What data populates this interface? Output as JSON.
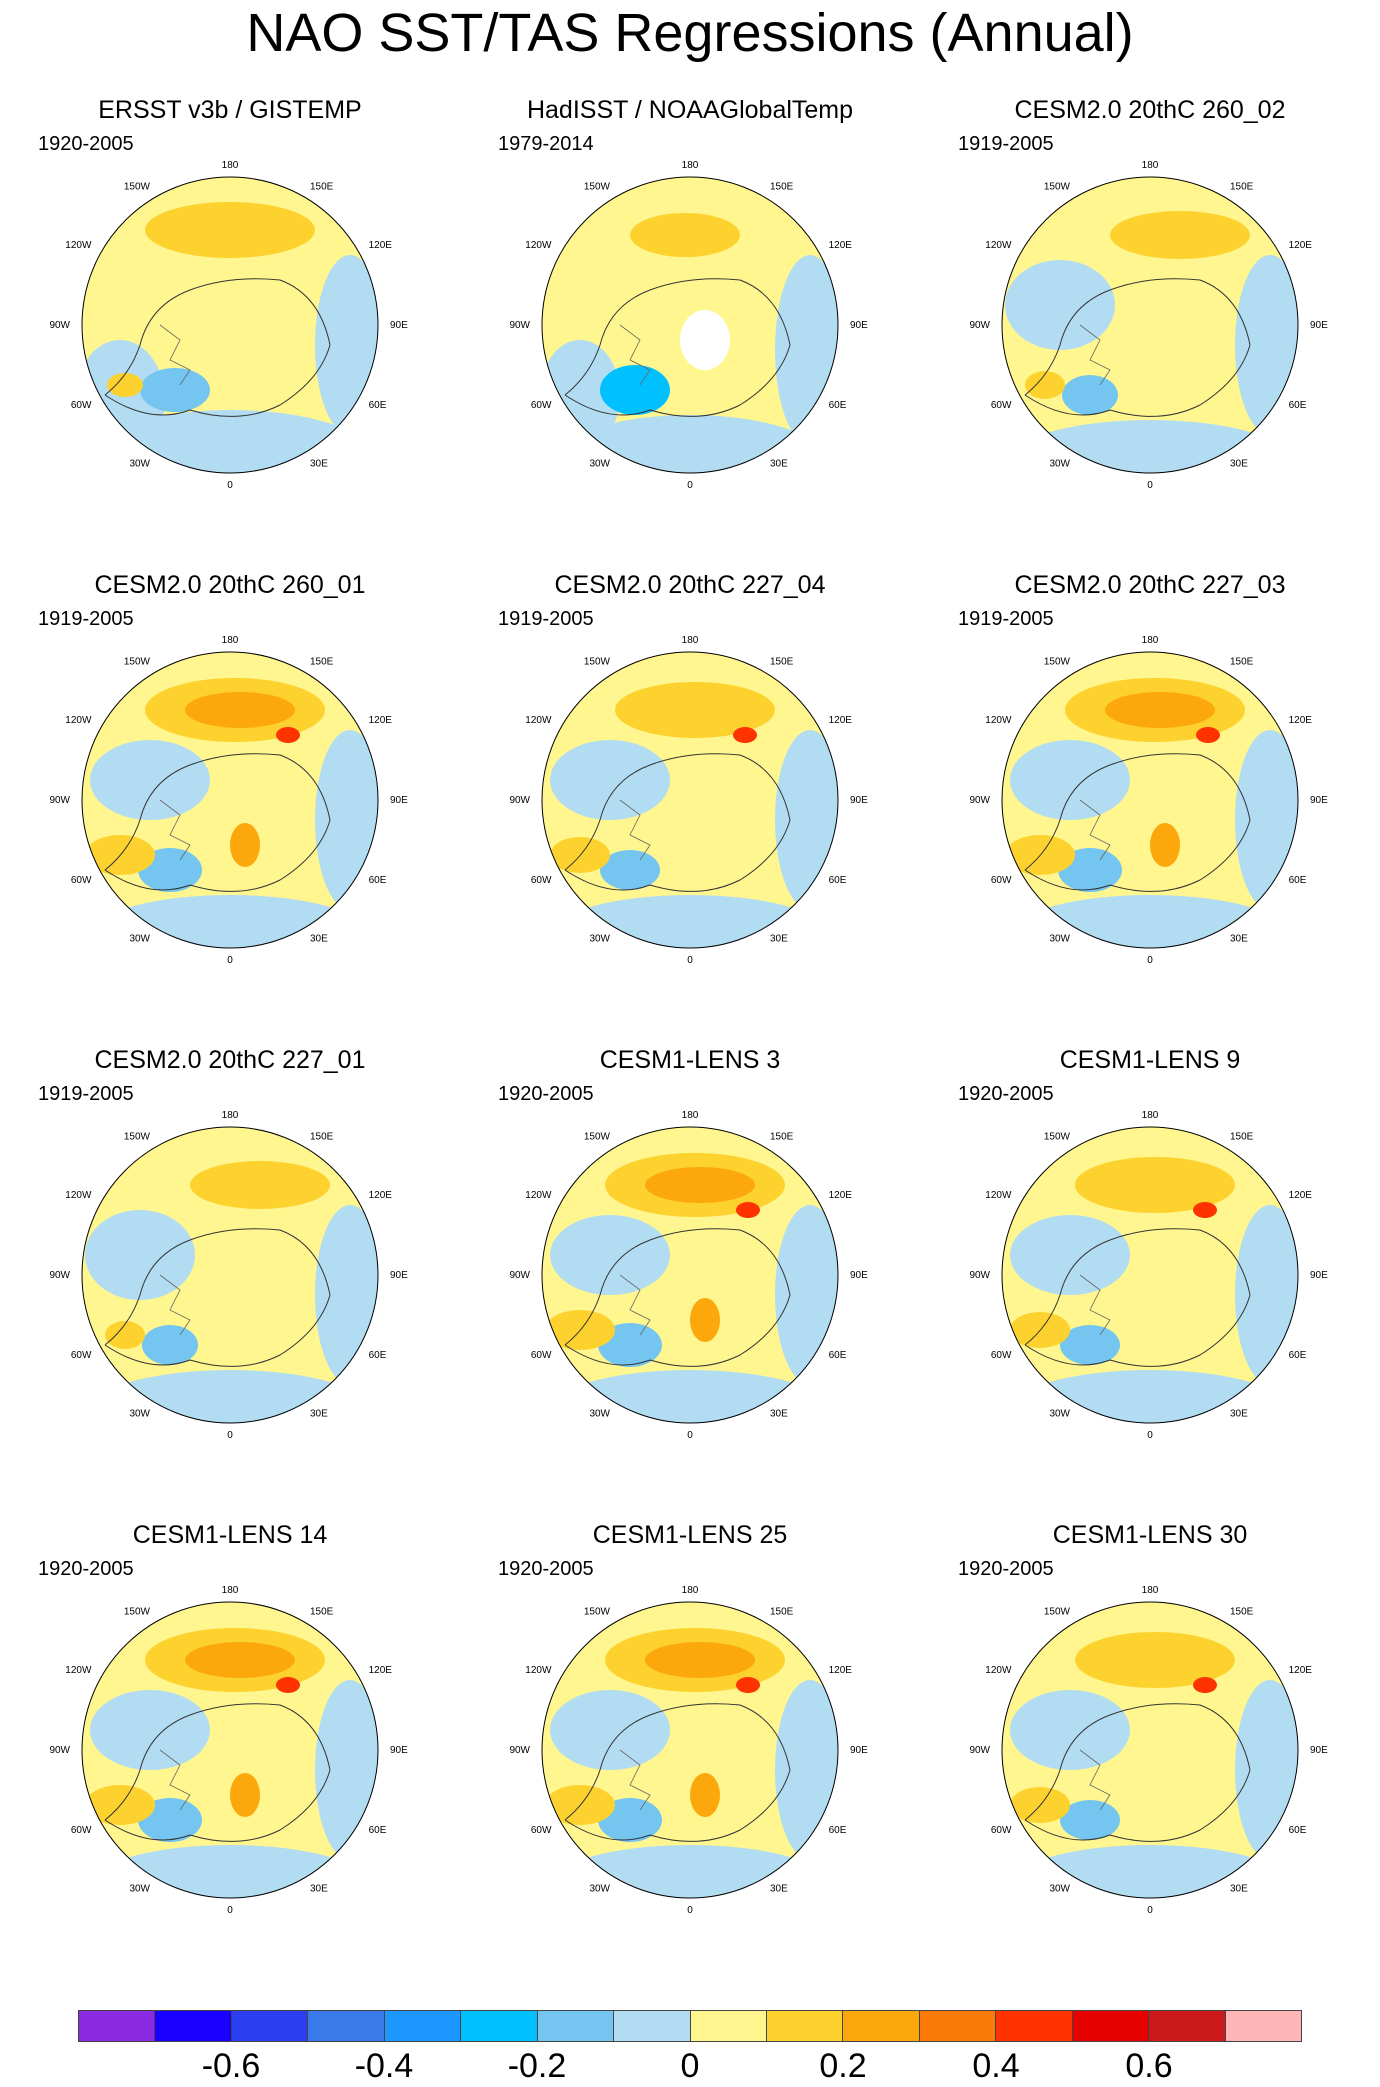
{
  "title": "NAO SST/TAS Regressions (Annual)",
  "panels": [
    {
      "title": "ERSST v3b / GISTEMP",
      "period": "1920-2005",
      "variant": "obs1"
    },
    {
      "title": "HadISST / NOAAGlobalTemp",
      "period": "1979-2014",
      "variant": "obs2"
    },
    {
      "title": "CESM2.0 20thC 260_02",
      "period": "1919-2005",
      "variant": "weak"
    },
    {
      "title": "CESM2.0 20thC 260_01",
      "period": "1919-2005",
      "variant": "strong"
    },
    {
      "title": "CESM2.0 20thC 227_04",
      "period": "1919-2005",
      "variant": "mid"
    },
    {
      "title": "CESM2.0 20thC 227_03",
      "period": "1919-2005",
      "variant": "strong"
    },
    {
      "title": "CESM2.0 20thC 227_01",
      "period": "1919-2005",
      "variant": "weak"
    },
    {
      "title": "CESM1-LENS 3",
      "period": "1920-2005",
      "variant": "strong"
    },
    {
      "title": "CESM1-LENS 9",
      "period": "1920-2005",
      "variant": "mid"
    },
    {
      "title": "CESM1-LENS 14",
      "period": "1920-2005",
      "variant": "strong"
    },
    {
      "title": "CESM1-LENS 25",
      "period": "1920-2005",
      "variant": "strong"
    },
    {
      "title": "CESM1-LENS 30",
      "period": "1920-2005",
      "variant": "mid"
    }
  ],
  "longitude_labels": [
    "180",
    "150E",
    "120E",
    "90E",
    "60E",
    "30E",
    "0",
    "30W",
    "60W",
    "90W",
    "120W",
    "150W"
  ],
  "colorbar": {
    "colors": [
      "#8a2be2",
      "#1a00ff",
      "#2a3ff0",
      "#3a7ae8",
      "#1e96ff",
      "#00c0ff",
      "#74c6f0",
      "#b2dcf2",
      "#fff68f",
      "#fdd22e",
      "#fca80d",
      "#fb7a08",
      "#ff3300",
      "#e60000",
      "#cc1a1a",
      "#ffb6b6"
    ],
    "labels": [
      "-0.6",
      "-0.4",
      "-0.2",
      "0",
      "0.2",
      "0.4",
      "0.6"
    ],
    "label_boundaries": [
      2,
      4,
      6,
      8,
      10,
      12,
      14
    ]
  }
}
